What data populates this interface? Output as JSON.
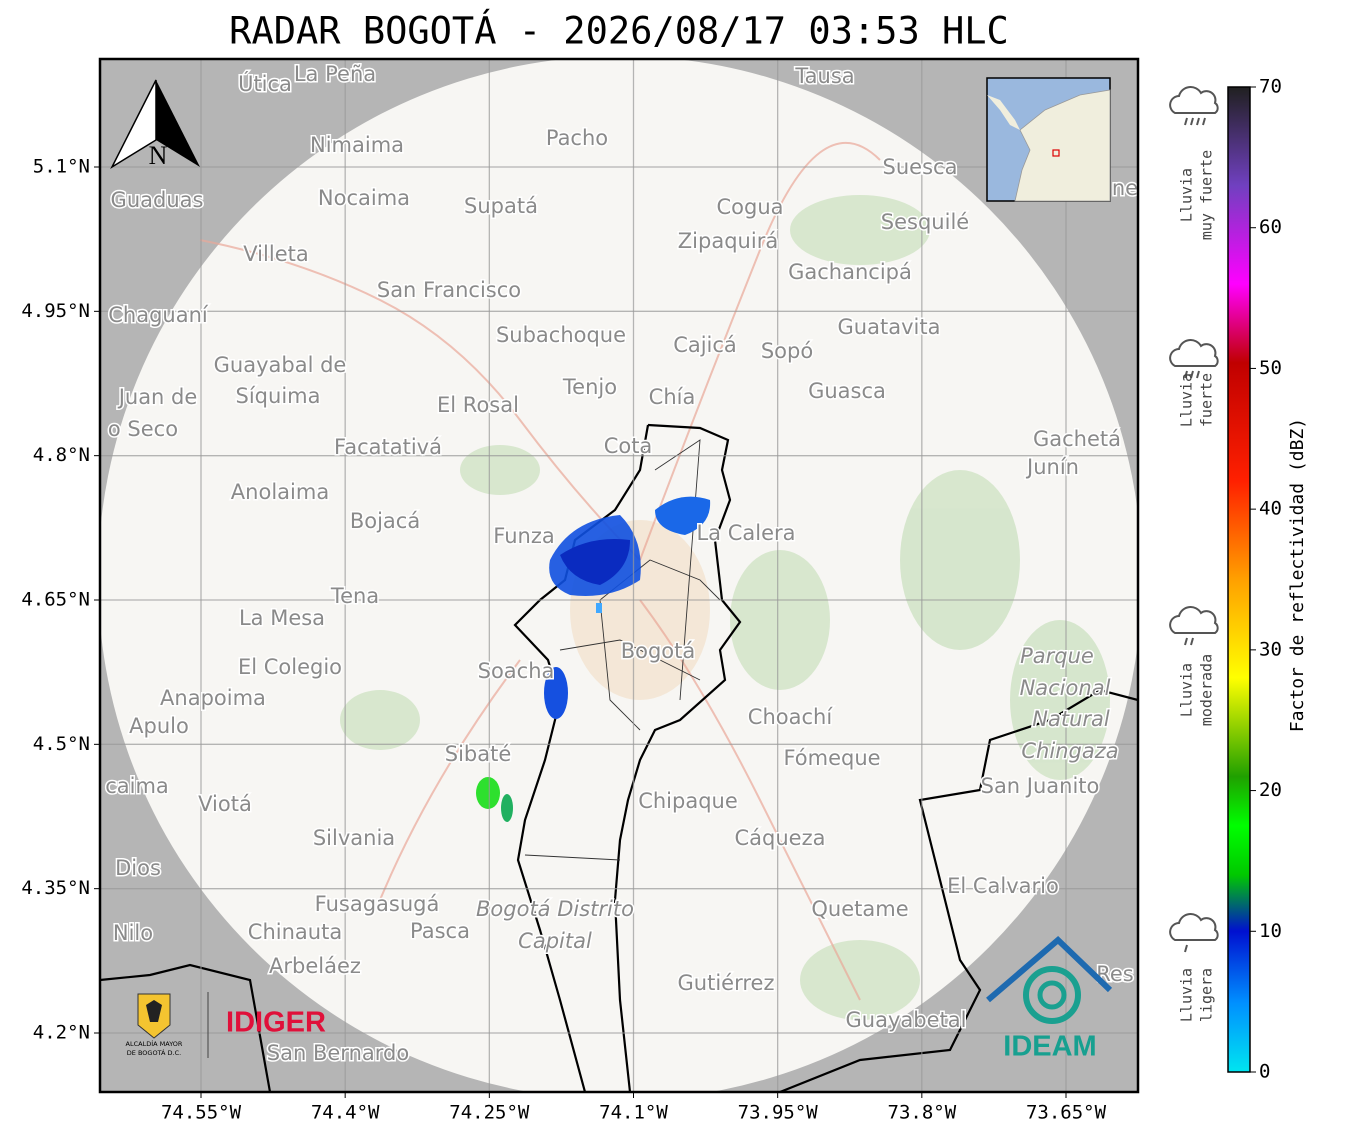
{
  "title": "RADAR BOGOTÁ - 2026/08/17 03:53 HLC",
  "map": {
    "north": "N",
    "lat_ticks": [
      {
        "value": 5.1,
        "label": "5.1°N"
      },
      {
        "value": 4.95,
        "label": "4.95°N"
      },
      {
        "value": 4.8,
        "label": "4.8°N"
      },
      {
        "value": 4.65,
        "label": "4.65°N"
      },
      {
        "value": 4.5,
        "label": "4.5°N"
      },
      {
        "value": 4.35,
        "label": "4.35°N"
      },
      {
        "value": 4.2,
        "label": "4.2°N"
      }
    ],
    "lon_ticks": [
      {
        "value": -74.55,
        "label": "74.55°W"
      },
      {
        "value": -74.4,
        "label": "74.4°W"
      },
      {
        "value": -74.25,
        "label": "74.25°W"
      },
      {
        "value": -74.1,
        "label": "74.1°W"
      },
      {
        "value": -73.95,
        "label": "73.95°W"
      },
      {
        "value": -73.8,
        "label": "73.8°W"
      },
      {
        "value": -73.65,
        "label": "73.65°W"
      }
    ],
    "places": [
      "Útica",
      "La Peña",
      "Tausa",
      "Pacho",
      "Nimaima",
      "Suesca",
      "Guaduas",
      "Nocaima",
      "Supatá",
      "Cogua",
      "Sesquilé",
      "Zipaquirá",
      "Villeta",
      "Gachancipá",
      "San Francisco",
      "Chaguaní",
      "Guatavita",
      "Subachoque",
      "Cajicá",
      "Sopó",
      "Guayabal de",
      "Síquima",
      "Juan de",
      "Tenjo",
      "Chía",
      "Guasca",
      "El Rosal",
      "o Seco",
      "Cota",
      "Facatativá",
      "Gachetá",
      "Junín",
      "Anolaima",
      "Bojacá",
      "Funza",
      "La Calera",
      "Tena",
      "La Mesa",
      "Bogotá",
      "Parque",
      "Nacional",
      "Natural",
      "Chingaza",
      "El Colegio",
      "Soacha",
      "Anapoima",
      "Apulo",
      "Choachí",
      "Sibaté",
      "Fómeque",
      "San Juanito",
      "caima",
      "Viotá",
      "Chipaque",
      "Silvania",
      "Cáqueza",
      "Dios",
      "El Calvario",
      "Fusagasugá",
      "Bogotá Distrito",
      "Capital",
      "Quetame",
      "Nilo",
      "Chinauta",
      "Pasca",
      "Arbeláez",
      "Res",
      "Gutiérrez",
      "Guayabetal",
      "San Bernardo",
      "ne"
    ]
  },
  "colorbar": {
    "label": "Factor de reflectividad (dBZ)",
    "range": [
      0,
      70
    ],
    "ticks": [
      0,
      10,
      20,
      30,
      40,
      50,
      60,
      70
    ]
  },
  "rain_legend": [
    {
      "lines": [
        "Lluvia",
        "muy fuerte"
      ]
    },
    {
      "lines": [
        "Lluvia",
        "fuerte"
      ]
    },
    {
      "lines": [
        "Lluvia",
        "moderada"
      ]
    },
    {
      "lines": [
        "Lluvia",
        "ligera"
      ]
    }
  ],
  "logos": {
    "idiger": "IDIGER",
    "alcaldia": [
      "ALCALDÍA MAYOR",
      "DE BOGOTÁ D.C."
    ],
    "ideam": "IDEAM"
  }
}
